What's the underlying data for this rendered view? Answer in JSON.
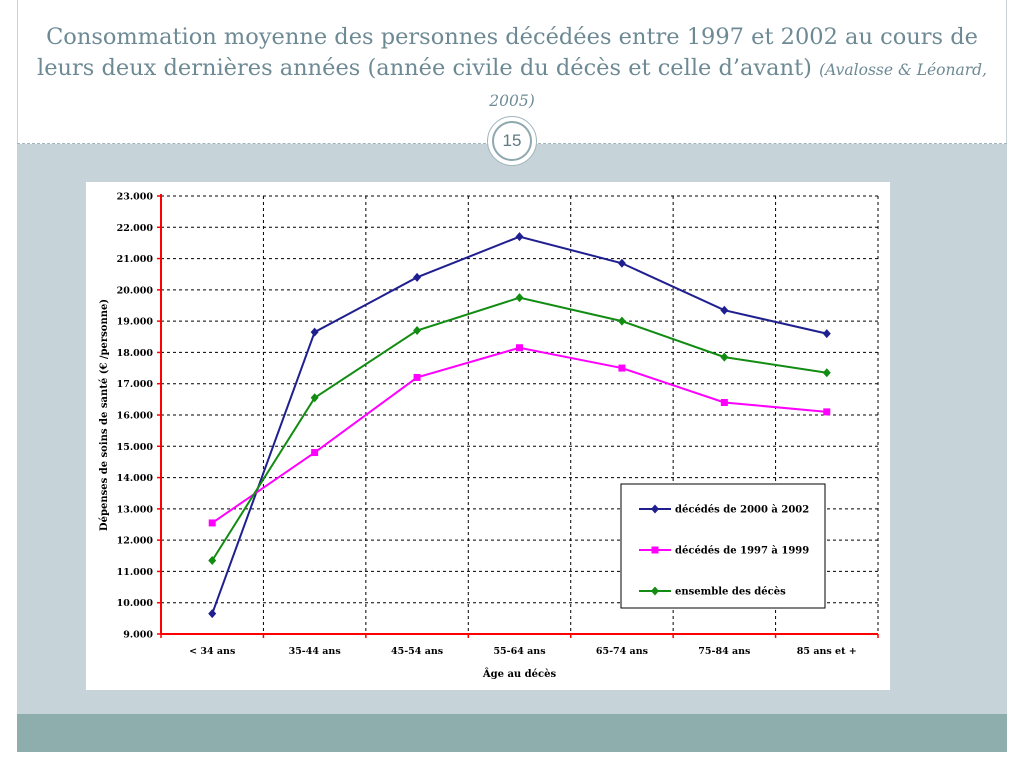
{
  "slide": {
    "title_main": "Consommation moyenne des personnes décédées entre 1997 et 2002 au cours de leurs deux dernières années (année civile du décès et celle d’avant)",
    "title_citation": "(Avalosse & Léonard, 2005)",
    "page_number": "15"
  },
  "colors": {
    "title_text": "#6d8a94",
    "body_background": "#c6d3d8",
    "footer_band": "#8eaeae",
    "axis_line": "#ff0000",
    "grid_line": "#000000",
    "series_2000_2002": "#1f1f8f",
    "series_1997_1999": "#ff00ff",
    "series_all": "#128c12"
  },
  "chart_data": {
    "type": "line",
    "title": "",
    "xlabel": "Âge au décès",
    "ylabel": "Dépenses de soins de santé (€ /personne)",
    "categories": [
      "< 34 ans",
      "35-44 ans",
      "45-54 ans",
      "55-64 ans",
      "65-74 ans",
      "75-84 ans",
      "85 ans et +"
    ],
    "ylim": [
      9000,
      23000
    ],
    "yticks": [
      9000,
      10000,
      11000,
      12000,
      13000,
      14000,
      15000,
      16000,
      17000,
      18000,
      19000,
      20000,
      21000,
      22000,
      23000
    ],
    "ytick_labels": [
      "9.000",
      "10.000",
      "11.000",
      "12.000",
      "13.000",
      "14.000",
      "15.000",
      "16.000",
      "17.000",
      "18.000",
      "19.000",
      "20.000",
      "21.000",
      "22.000",
      "23.000"
    ],
    "grid": true,
    "legend_position": "bottom-right",
    "series": [
      {
        "name": "décédés de 2000 à 2002",
        "color": "#1f1f8f",
        "marker": "diamond",
        "values": [
          9650,
          18650,
          20400,
          21700,
          20850,
          19350,
          18600
        ]
      },
      {
        "name": "décédés de 1997 à 1999",
        "color": "#ff00ff",
        "marker": "square",
        "values": [
          12550,
          14800,
          17200,
          18150,
          17500,
          16400,
          16100
        ]
      },
      {
        "name": "ensemble des décès",
        "color": "#128c12",
        "marker": "diamond",
        "values": [
          11350,
          16550,
          18700,
          19750,
          19000,
          17850,
          17350
        ]
      }
    ]
  }
}
